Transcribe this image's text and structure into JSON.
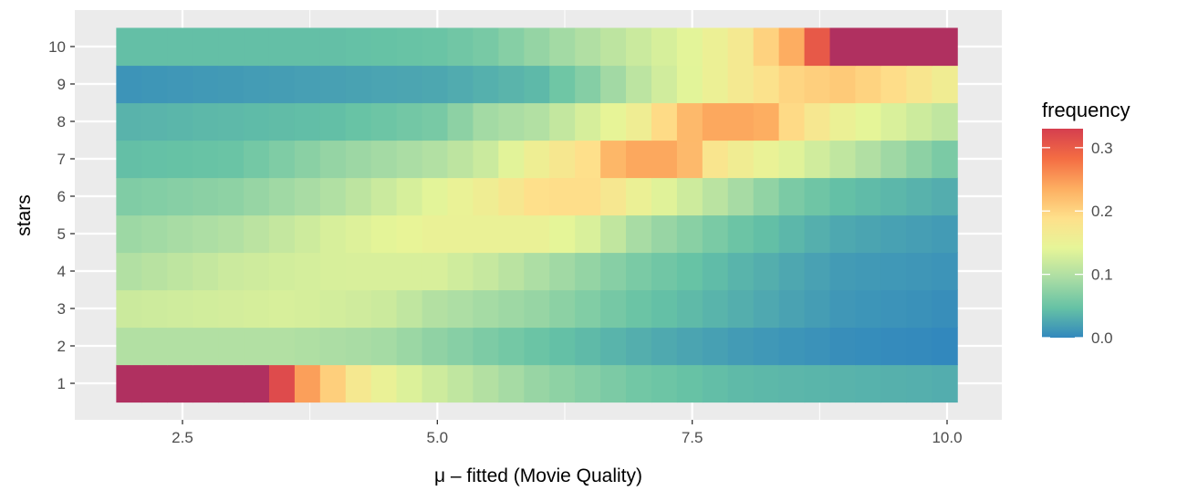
{
  "chart_data": {
    "type": "heatmap",
    "xlabel": "μ – fitted (Movie Quality)",
    "ylabel": "stars",
    "x_ticks": [
      2.5,
      5.0,
      7.5,
      10.0
    ],
    "x_tick_labels": [
      "2.5",
      "5.0",
      "7.5",
      "10.0"
    ],
    "y_ticks": [
      1,
      2,
      3,
      4,
      5,
      6,
      7,
      8,
      9,
      10
    ],
    "y_tick_labels": [
      "1",
      "2",
      "3",
      "4",
      "5",
      "6",
      "7",
      "8",
      "9",
      "10"
    ],
    "xlim": [
      1.55,
      10.65
    ],
    "ylim": [
      0.45,
      10.9
    ],
    "grid": true,
    "legend_position": "right",
    "colorscale": {
      "title": "frequency",
      "min": 0.0,
      "max": 0.33,
      "ticks": [
        0.0,
        0.1,
        0.2,
        0.3
      ],
      "tick_labels": [
        "0.0",
        "0.1",
        "0.2",
        "0.3"
      ],
      "palette": [
        "#3288bd",
        "#66c2a5",
        "#abdda4",
        "#e6f598",
        "#fee08b",
        "#fdae61",
        "#f46d43",
        "#d53e4f"
      ],
      "out_of_range_color": "#b03060"
    },
    "x_bins": {
      "start": 1.85,
      "end": 10.1,
      "count": 33
    },
    "stars_profiles": {
      "1": [
        [
          2.0,
          0.4
        ],
        [
          3.35,
          0.4
        ],
        [
          3.5,
          0.3
        ],
        [
          3.7,
          0.25
        ],
        [
          3.9,
          0.22
        ],
        [
          4.1,
          0.18
        ],
        [
          4.6,
          0.14
        ],
        [
          5.0,
          0.12
        ],
        [
          5.5,
          0.1
        ],
        [
          6.0,
          0.08
        ],
        [
          7.0,
          0.055
        ],
        [
          8.0,
          0.04
        ],
        [
          10.0,
          0.03
        ]
      ],
      "2": [
        [
          2.0,
          0.1
        ],
        [
          3.5,
          0.1
        ],
        [
          4.5,
          0.09
        ],
        [
          5.0,
          0.075
        ],
        [
          6.0,
          0.05
        ],
        [
          7.0,
          0.03
        ],
        [
          8.0,
          0.015
        ],
        [
          9.0,
          0.005
        ],
        [
          10.0,
          0.0
        ]
      ],
      "3": [
        [
          2.0,
          0.12
        ],
        [
          3.5,
          0.13
        ],
        [
          4.5,
          0.12
        ],
        [
          5.0,
          0.1
        ],
        [
          6.0,
          0.08
        ],
        [
          7.0,
          0.05
        ],
        [
          8.0,
          0.03
        ],
        [
          9.0,
          0.012
        ],
        [
          10.0,
          0.005
        ]
      ],
      "4": [
        [
          2.0,
          0.1
        ],
        [
          3.0,
          0.12
        ],
        [
          4.0,
          0.13
        ],
        [
          5.0,
          0.13
        ],
        [
          5.5,
          0.115
        ],
        [
          6.0,
          0.095
        ],
        [
          7.0,
          0.06
        ],
        [
          8.0,
          0.035
        ],
        [
          9.0,
          0.015
        ],
        [
          10.0,
          0.01
        ]
      ],
      "5": [
        [
          2.0,
          0.085
        ],
        [
          3.0,
          0.1
        ],
        [
          4.0,
          0.13
        ],
        [
          5.0,
          0.15
        ],
        [
          6.0,
          0.15
        ],
        [
          6.5,
          0.13
        ],
        [
          7.0,
          0.09
        ],
        [
          7.5,
          0.07
        ],
        [
          8.0,
          0.05
        ],
        [
          9.0,
          0.025
        ],
        [
          10.0,
          0.015
        ]
      ],
      "6": [
        [
          2.0,
          0.065
        ],
        [
          3.0,
          0.075
        ],
        [
          4.0,
          0.1
        ],
        [
          4.5,
          0.12
        ],
        [
          5.0,
          0.14
        ],
        [
          5.5,
          0.16
        ],
        [
          6.0,
          0.19
        ],
        [
          6.5,
          0.19
        ],
        [
          7.0,
          0.15
        ],
        [
          7.5,
          0.12
        ],
        [
          8.0,
          0.09
        ],
        [
          8.5,
          0.06
        ],
        [
          9.0,
          0.045
        ],
        [
          10.0,
          0.03
        ]
      ],
      "7": [
        [
          2.0,
          0.045
        ],
        [
          3.0,
          0.05
        ],
        [
          4.0,
          0.08
        ],
        [
          5.0,
          0.1
        ],
        [
          5.5,
          0.12
        ],
        [
          6.0,
          0.16
        ],
        [
          6.5,
          0.19
        ],
        [
          6.8,
          0.24
        ],
        [
          7.0,
          0.24
        ],
        [
          7.4,
          0.24
        ],
        [
          7.7,
          0.18
        ],
        [
          8.0,
          0.16
        ],
        [
          9.0,
          0.11
        ],
        [
          10.0,
          0.06
        ]
      ],
      "8": [
        [
          2.0,
          0.035
        ],
        [
          3.0,
          0.04
        ],
        [
          4.0,
          0.045
        ],
        [
          5.0,
          0.06
        ],
        [
          5.5,
          0.09
        ],
        [
          6.0,
          0.1
        ],
        [
          6.5,
          0.13
        ],
        [
          7.0,
          0.16
        ],
        [
          7.4,
          0.22
        ],
        [
          7.7,
          0.24
        ],
        [
          8.2,
          0.24
        ],
        [
          8.5,
          0.19
        ],
        [
          9.0,
          0.15
        ],
        [
          9.5,
          0.13
        ],
        [
          10.0,
          0.11
        ]
      ],
      "9": [
        [
          2.0,
          0.01
        ],
        [
          4.0,
          0.02
        ],
        [
          5.0,
          0.025
        ],
        [
          6.0,
          0.04
        ],
        [
          6.5,
          0.07
        ],
        [
          7.0,
          0.11
        ],
        [
          7.5,
          0.14
        ],
        [
          8.0,
          0.17
        ],
        [
          8.5,
          0.2
        ],
        [
          9.0,
          0.21
        ],
        [
          9.5,
          0.19
        ],
        [
          10.0,
          0.16
        ]
      ],
      "10": [
        [
          2.0,
          0.045
        ],
        [
          4.0,
          0.045
        ],
        [
          5.0,
          0.05
        ],
        [
          5.5,
          0.06
        ],
        [
          6.0,
          0.08
        ],
        [
          6.5,
          0.1
        ],
        [
          7.0,
          0.12
        ],
        [
          7.5,
          0.14
        ],
        [
          8.0,
          0.17
        ],
        [
          8.5,
          0.24
        ],
        [
          8.75,
          0.31
        ],
        [
          9.0,
          0.4
        ],
        [
          10.0,
          0.4
        ]
      ]
    }
  }
}
